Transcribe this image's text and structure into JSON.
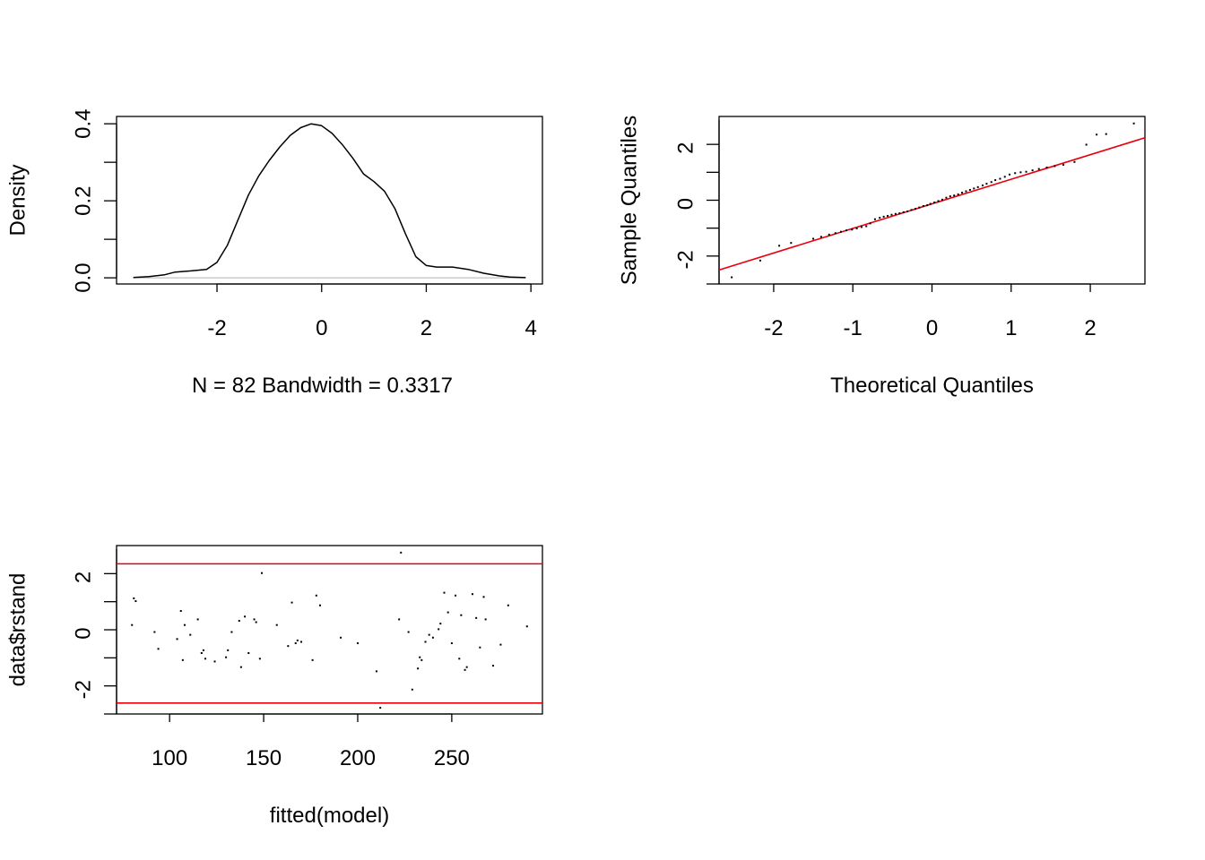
{
  "chart_data": [
    {
      "type": "line",
      "title": "",
      "xlabel": "N = 82   Bandwidth = 0.3317",
      "ylabel": "Density",
      "xlim": [
        -3.92,
        4.22
      ],
      "ylim": [
        -0.016,
        0.419
      ],
      "x_ticks": [
        "-2",
        "0",
        "2",
        "4"
      ],
      "y_ticks": [
        "0.0",
        "0.2",
        "0.4"
      ],
      "baseline": 0,
      "series": [
        {
          "x": [
            -3.6,
            -3.3,
            -3.0,
            -2.8,
            -2.5,
            -2.2,
            -2.0,
            -1.8,
            -1.6,
            -1.4,
            -1.2,
            -1.0,
            -0.8,
            -0.6,
            -0.4,
            -0.2,
            0.0,
            0.2,
            0.4,
            0.6,
            0.8,
            1.0,
            1.2,
            1.4,
            1.6,
            1.8,
            2.0,
            2.2,
            2.5,
            2.8,
            3.1,
            3.4,
            3.6,
            3.9
          ],
          "values": [
            0.001,
            0.003,
            0.008,
            0.015,
            0.018,
            0.022,
            0.04,
            0.085,
            0.15,
            0.215,
            0.265,
            0.305,
            0.34,
            0.37,
            0.39,
            0.4,
            0.395,
            0.375,
            0.345,
            0.31,
            0.27,
            0.25,
            0.225,
            0.18,
            0.115,
            0.055,
            0.032,
            0.028,
            0.028,
            0.022,
            0.012,
            0.005,
            0.002,
            0.0005
          ]
        }
      ]
    },
    {
      "type": "scatter",
      "title": "",
      "xlabel": "Theoretical Quantiles",
      "ylabel": "Sample Quantiles",
      "xlim": [
        -2.69,
        2.69
      ],
      "ylim": [
        -2.87,
        3.13
      ],
      "x_ticks": [
        "-2",
        "-1",
        "0",
        "1",
        "2"
      ],
      "y_ticks": [
        "-2",
        "0",
        "2"
      ],
      "reference_line": {
        "intercept": 0.0,
        "slope": 0.88
      },
      "x": [
        -2.53,
        -2.17,
        -1.93,
        -1.78,
        -1.5,
        -1.4,
        -1.3,
        -1.22,
        -1.15,
        -1.08,
        -1.01,
        -0.95,
        -0.89,
        -0.83,
        -0.78,
        -0.72,
        -0.66,
        -0.61,
        -0.56,
        -0.51,
        -0.46,
        -0.41,
        -0.36,
        -0.31,
        -0.26,
        -0.21,
        -0.16,
        -0.11,
        -0.06,
        -0.02,
        0.03,
        0.08,
        0.13,
        0.18,
        0.23,
        0.28,
        0.33,
        0.38,
        0.43,
        0.48,
        0.53,
        0.58,
        0.64,
        0.69,
        0.75,
        0.8,
        0.86,
        0.92,
        0.98,
        1.05,
        1.12,
        1.19,
        1.27,
        1.35,
        1.45,
        1.55,
        1.66,
        1.8,
        1.95,
        2.08,
        2.2,
        2.55
      ],
      "values": [
        -2.63,
        -2.03,
        -1.5,
        -1.4,
        -1.25,
        -1.18,
        -1.1,
        -1.05,
        -1.0,
        -0.95,
        -0.92,
        -0.88,
        -0.83,
        -0.8,
        -0.7,
        -0.55,
        -0.5,
        -0.46,
        -0.43,
        -0.39,
        -0.36,
        -0.34,
        -0.3,
        -0.27,
        -0.22,
        -0.18,
        -0.13,
        -0.08,
        -0.05,
        0.0,
        0.05,
        0.1,
        0.15,
        0.22,
        0.27,
        0.3,
        0.34,
        0.4,
        0.45,
        0.5,
        0.55,
        0.6,
        0.66,
        0.72,
        0.78,
        0.85,
        0.9,
        0.97,
        1.05,
        1.1,
        1.13,
        1.15,
        1.2,
        1.25,
        1.3,
        1.35,
        1.4,
        1.5,
        2.12,
        2.48,
        2.5,
        2.88
      ]
    },
    {
      "type": "scatter",
      "title": "",
      "xlabel": "fitted(model)",
      "ylabel": "data$rstand",
      "xlim": [
        71.8,
        298.2
      ],
      "ylim": [
        -2.87,
        3.13
      ],
      "x_ticks": [
        "100",
        "150",
        "200",
        "250"
      ],
      "y_ticks": [
        "-2",
        "0",
        "2"
      ],
      "hlines": [
        2.48,
        -2.48
      ],
      "x": [
        80,
        81,
        82,
        92,
        94,
        104,
        106,
        107,
        108,
        111,
        115,
        117,
        118,
        119,
        124,
        130,
        131,
        133,
        137,
        138,
        140,
        142,
        145,
        146,
        148,
        149,
        157,
        163,
        165,
        167,
        168,
        170,
        176,
        178,
        180,
        191,
        200,
        210,
        212,
        222,
        223,
        227,
        229,
        232,
        233,
        234,
        236,
        238,
        240,
        243,
        244,
        246,
        248,
        250,
        252,
        254,
        255,
        257,
        258,
        261,
        263,
        265,
        267,
        268,
        272,
        276,
        280,
        290
      ],
      "values": [
        0.3,
        1.25,
        1.15,
        0.05,
        -0.55,
        -0.2,
        0.8,
        -0.95,
        0.3,
        -0.05,
        0.5,
        -0.7,
        -0.6,
        -0.9,
        -1.0,
        -0.85,
        -0.6,
        0.05,
        0.45,
        -1.2,
        0.6,
        -0.7,
        0.5,
        0.4,
        -0.9,
        2.15,
        0.3,
        -0.45,
        1.1,
        -0.35,
        -0.25,
        -0.3,
        -0.95,
        1.35,
        1.0,
        -0.15,
        -0.35,
        -1.35,
        -2.65,
        0.5,
        2.88,
        0.05,
        -2.0,
        -1.25,
        -0.85,
        -0.95,
        -0.3,
        -0.05,
        -0.15,
        0.15,
        0.35,
        1.45,
        0.75,
        -0.35,
        1.35,
        -0.9,
        0.65,
        -1.3,
        -1.2,
        1.4,
        0.55,
        -0.5,
        1.3,
        0.5,
        -1.15,
        -0.4,
        1.0,
        0.25
      ]
    }
  ]
}
